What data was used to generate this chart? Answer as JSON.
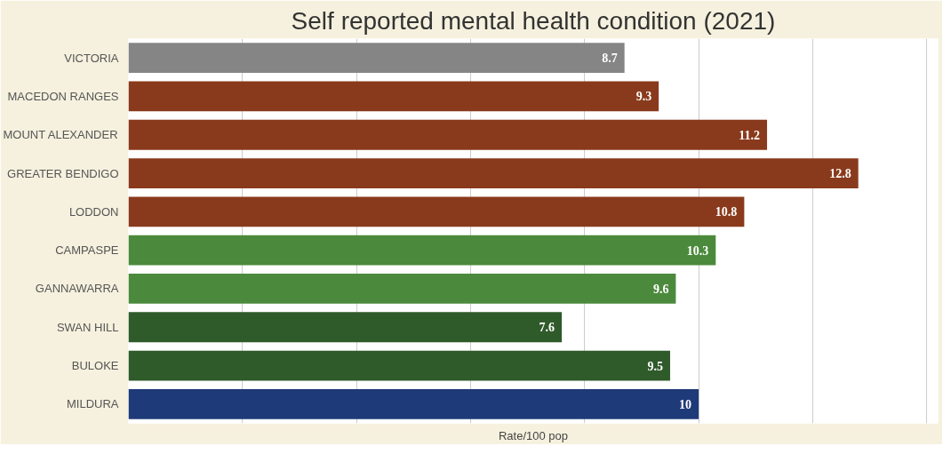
{
  "chart_data": {
    "type": "bar",
    "orientation": "horizontal",
    "title": "Self reported mental health condition (2021)",
    "xlabel": "Rate/100 pop",
    "categories": [
      "VICTORIA",
      "MACEDON RANGES",
      "MOUNT ALEXANDER",
      "GREATER BENDIGO",
      "LODDON",
      "CAMPASPE",
      "GANNAWARRA",
      "SWAN HILL",
      "BULOKE",
      "MILDURA"
    ],
    "values": [
      8.7,
      9.3,
      11.2,
      12.8,
      10.8,
      10.3,
      9.6,
      7.6,
      9.5,
      10
    ],
    "colors": [
      "#858585",
      "#8a3a1c",
      "#8a3a1c",
      "#8a3a1c",
      "#8a3a1c",
      "#4b8a3c",
      "#4b8a3c",
      "#2f5a2a",
      "#2f5a2a",
      "#1f3a78"
    ],
    "xlim": [
      0,
      14.2
    ],
    "xticks": [
      {
        "value": 0,
        "label": null
      },
      {
        "value": 2,
        "label": null
      },
      {
        "value": 4,
        "label": null
      },
      {
        "value": 6,
        "label": null
      },
      {
        "value": 8,
        "label": null
      },
      {
        "value": 10,
        "label": null
      },
      {
        "value": 12,
        "label": null
      },
      {
        "value": 14,
        "label": null
      }
    ],
    "grid": "x",
    "tick_labels": "y",
    "data_labels": true
  }
}
